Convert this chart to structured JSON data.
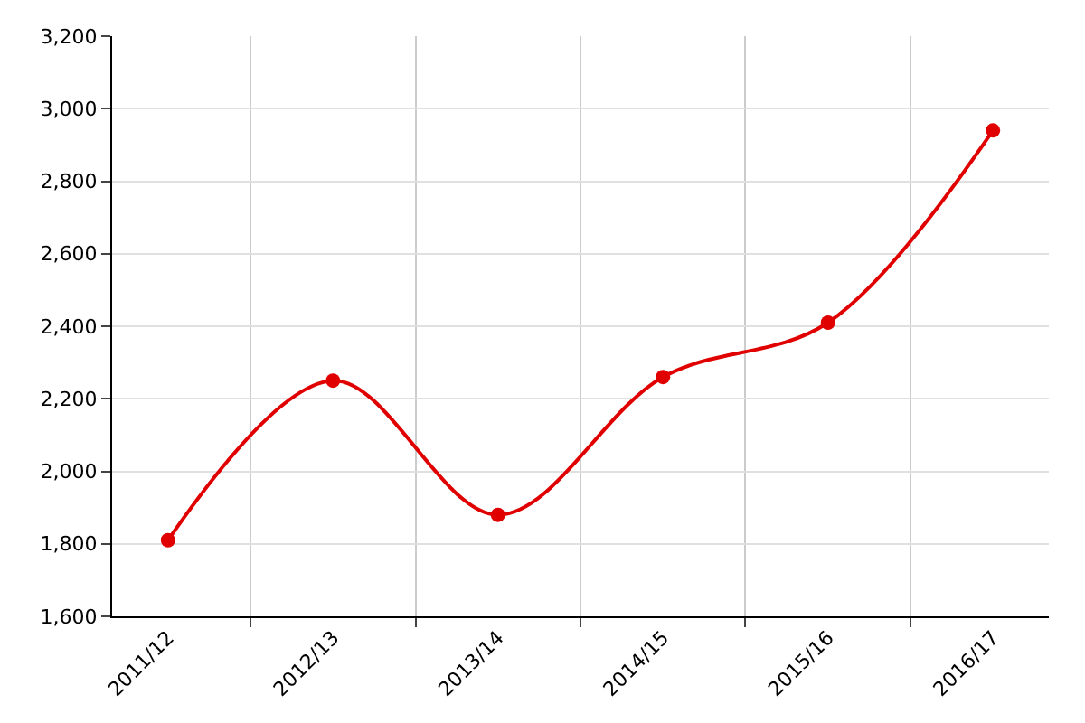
{
  "chart_data": {
    "type": "line",
    "categories": [
      "2011/12",
      "2012/13",
      "2013/14",
      "2014/15",
      "2015/16",
      "2016/17"
    ],
    "series": [
      {
        "color": "#e00000",
        "values": [
          1810,
          2250,
          1880,
          2260,
          2410,
          2940
        ]
      }
    ],
    "ylim": [
      1600,
      3200
    ],
    "yticks": [
      {
        "value": 1600,
        "label": "1,600"
      },
      {
        "value": 1800,
        "label": "1,800"
      },
      {
        "value": 2000,
        "label": "2,000"
      },
      {
        "value": 2200,
        "label": "2,200"
      },
      {
        "value": 2400,
        "label": "2,400"
      },
      {
        "value": 2600,
        "label": "2,600"
      },
      {
        "value": 2800,
        "label": "2,800"
      },
      {
        "value": 3000,
        "label": "3,000"
      },
      {
        "value": 3200,
        "label": "3,200"
      }
    ],
    "grid": true,
    "marker": "circle",
    "line_style": "solid",
    "legend": false
  }
}
